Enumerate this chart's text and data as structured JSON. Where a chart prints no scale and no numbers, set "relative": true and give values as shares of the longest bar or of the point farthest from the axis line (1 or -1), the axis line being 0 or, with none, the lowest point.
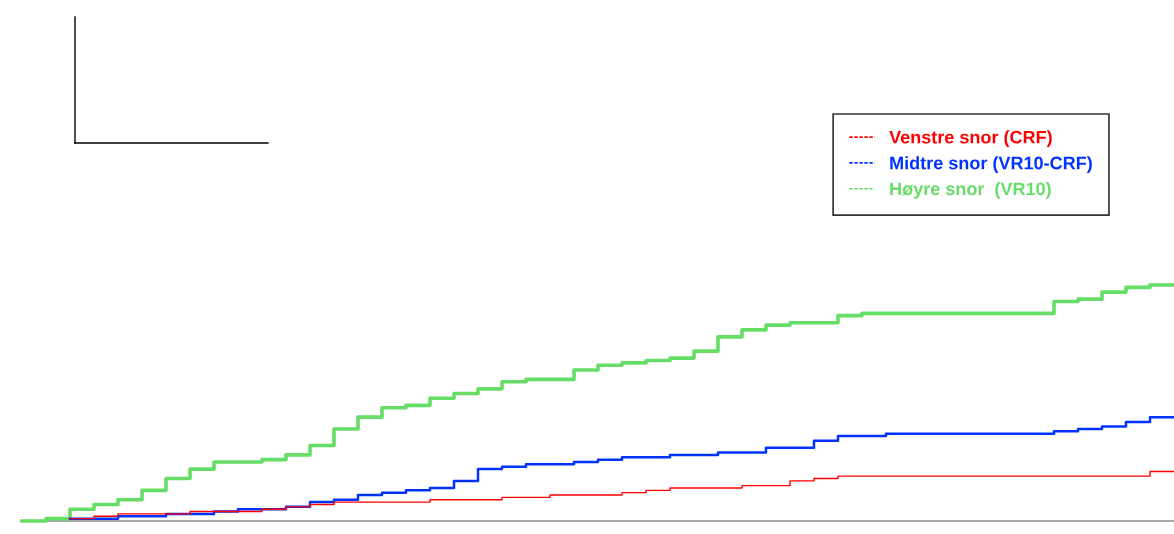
{
  "chart_data": {
    "type": "step",
    "relative": true,
    "categories": [
      null,
      null,
      null,
      null,
      null,
      null,
      null,
      null,
      null,
      null,
      null,
      null,
      null,
      null,
      null,
      null,
      null,
      null,
      null,
      null,
      null,
      null,
      null,
      null,
      null,
      null,
      null,
      null,
      null,
      null,
      null,
      null,
      null,
      null,
      null,
      null,
      null,
      null,
      null,
      null,
      null,
      null,
      null,
      null,
      null,
      null,
      null,
      null,
      null
    ],
    "legend": "top right",
    "grid": false,
    "series": [
      {
        "name": "Venstre snor (CRF)",
        "color": "#ff0000",
        "values": [
          null,
          null,
          0.01,
          0.02,
          0.03,
          0.03,
          0.03,
          0.04,
          0.04,
          0.04,
          0.05,
          0.06,
          0.07,
          0.08,
          0.08,
          0.08,
          0.08,
          0.09,
          0.09,
          0.09,
          0.1,
          0.1,
          0.11,
          0.11,
          0.11,
          0.12,
          0.13,
          0.14,
          0.14,
          0.14,
          0.15,
          0.15,
          0.17,
          0.18,
          0.19,
          0.19,
          0.19,
          0.19,
          0.19,
          0.19,
          0.19,
          0.19,
          0.19,
          0.19,
          0.19,
          0.19,
          0.19,
          0.21,
          0.21
        ]
      },
      {
        "name": "Midtre snor (VR10-CRF)",
        "color": "#0033ff",
        "values": [
          null,
          null,
          0.01,
          0.01,
          0.02,
          0.02,
          0.03,
          0.03,
          0.04,
          0.05,
          0.05,
          0.06,
          0.08,
          0.09,
          0.11,
          0.12,
          0.13,
          0.14,
          0.17,
          0.22,
          0.23,
          0.24,
          0.24,
          0.25,
          0.26,
          0.27,
          0.27,
          0.28,
          0.28,
          0.29,
          0.29,
          0.31,
          0.31,
          0.34,
          0.36,
          0.36,
          0.37,
          0.37,
          0.37,
          0.37,
          0.37,
          0.37,
          0.37,
          0.38,
          0.39,
          0.4,
          0.42,
          0.44,
          0.44
        ]
      },
      {
        "name": "Høyre snor  (VR10)",
        "color": "#66dd66",
        "values": [
          0,
          0.01,
          0.05,
          0.07,
          0.09,
          0.13,
          0.18,
          0.22,
          0.25,
          0.25,
          0.26,
          0.28,
          0.32,
          0.39,
          0.44,
          0.48,
          0.49,
          0.52,
          0.54,
          0.56,
          0.59,
          0.6,
          0.6,
          0.64,
          0.66,
          0.67,
          0.68,
          0.69,
          0.72,
          0.78,
          0.81,
          0.83,
          0.84,
          0.84,
          0.87,
          0.88,
          0.88,
          0.88,
          0.88,
          0.88,
          0.88,
          0.88,
          0.88,
          0.93,
          0.94,
          0.97,
          0.99,
          1,
          1
        ]
      }
    ]
  }
}
